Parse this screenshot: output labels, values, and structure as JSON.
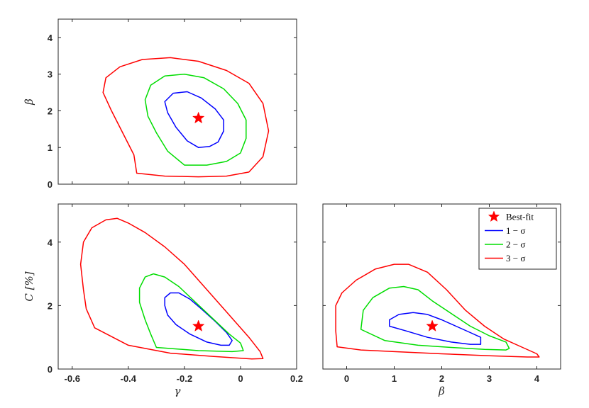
{
  "chart_data": [
    {
      "type": "line",
      "panel": "gamma-beta",
      "xlabel": "",
      "ylabel": "β",
      "xlim": [
        -0.65,
        0.2
      ],
      "ylim": [
        0,
        4.5
      ],
      "xticks": [],
      "yticks": [
        "0",
        "1",
        "2",
        "3",
        "4"
      ],
      "ytick_values": [
        0,
        1,
        2,
        3,
        4
      ],
      "xtick_values": [
        -0.6,
        -0.4,
        -0.2,
        0,
        0.2
      ],
      "series": [
        {
          "name": "1 − σ",
          "color": "#0000ff",
          "points": [
            [
              -0.15,
              1.0
            ],
            [
              -0.11,
              1.03
            ],
            [
              -0.08,
              1.15
            ],
            [
              -0.06,
              1.45
            ],
            [
              -0.06,
              1.75
            ],
            [
              -0.09,
              2.05
            ],
            [
              -0.14,
              2.35
            ],
            [
              -0.19,
              2.52
            ],
            [
              -0.24,
              2.48
            ],
            [
              -0.27,
              2.25
            ],
            [
              -0.26,
              1.95
            ],
            [
              -0.23,
              1.55
            ],
            [
              -0.19,
              1.18
            ],
            [
              -0.15,
              1.0
            ]
          ]
        },
        {
          "name": "2 − σ",
          "color": "#00dd00",
          "points": [
            [
              -0.2,
              0.52
            ],
            [
              -0.12,
              0.52
            ],
            [
              -0.05,
              0.62
            ],
            [
              0.0,
              0.85
            ],
            [
              0.02,
              1.25
            ],
            [
              0.02,
              1.75
            ],
            [
              -0.01,
              2.2
            ],
            [
              -0.06,
              2.6
            ],
            [
              -0.13,
              2.9
            ],
            [
              -0.2,
              3.0
            ],
            [
              -0.27,
              2.95
            ],
            [
              -0.32,
              2.7
            ],
            [
              -0.34,
              2.3
            ],
            [
              -0.33,
              1.85
            ],
            [
              -0.3,
              1.4
            ],
            [
              -0.26,
              0.9
            ],
            [
              -0.2,
              0.52
            ]
          ]
        },
        {
          "name": "3 − σ",
          "color": "#ff0000",
          "points": [
            [
              -0.37,
              0.3
            ],
            [
              -0.27,
              0.22
            ],
            [
              -0.15,
              0.2
            ],
            [
              -0.05,
              0.22
            ],
            [
              0.03,
              0.33
            ],
            [
              0.08,
              0.75
            ],
            [
              0.1,
              1.45
            ],
            [
              0.08,
              2.2
            ],
            [
              0.03,
              2.75
            ],
            [
              -0.05,
              3.1
            ],
            [
              -0.15,
              3.35
            ],
            [
              -0.25,
              3.45
            ],
            [
              -0.35,
              3.4
            ],
            [
              -0.43,
              3.2
            ],
            [
              -0.48,
              2.9
            ],
            [
              -0.49,
              2.5
            ],
            [
              -0.46,
              2.0
            ],
            [
              -0.42,
              1.4
            ],
            [
              -0.38,
              0.8
            ],
            [
              -0.37,
              0.3
            ]
          ]
        }
      ],
      "best_fit": {
        "name": "Best-fit",
        "x": -0.15,
        "y": 1.8,
        "color": "#ff0000"
      }
    },
    {
      "type": "line",
      "panel": "gamma-C",
      "xlabel": "γ",
      "ylabel": "C [%]",
      "xlim": [
        -0.65,
        0.2
      ],
      "ylim": [
        0,
        5.2
      ],
      "xticks": [
        "-0.6",
        "-0.4",
        "-0.2",
        "0",
        "0.2"
      ],
      "xtick_values": [
        -0.6,
        -0.4,
        -0.2,
        0,
        0.2
      ],
      "yticks": [
        "0",
        "2",
        "4"
      ],
      "ytick_values": [
        0,
        2,
        4
      ],
      "series": [
        {
          "name": "1 − σ",
          "color": "#0000ff",
          "points": [
            [
              -0.07,
              0.75
            ],
            [
              -0.04,
              0.75
            ],
            [
              -0.03,
              0.9
            ],
            [
              -0.05,
              1.15
            ],
            [
              -0.09,
              1.5
            ],
            [
              -0.14,
              1.9
            ],
            [
              -0.18,
              2.2
            ],
            [
              -0.22,
              2.4
            ],
            [
              -0.25,
              2.4
            ],
            [
              -0.27,
              2.25
            ],
            [
              -0.27,
              2.0
            ],
            [
              -0.26,
              1.7
            ],
            [
              -0.23,
              1.4
            ],
            [
              -0.18,
              1.1
            ],
            [
              -0.12,
              0.85
            ],
            [
              -0.07,
              0.75
            ]
          ]
        },
        {
          "name": "2 − σ",
          "color": "#00dd00",
          "points": [
            [
              -0.3,
              0.68
            ],
            [
              -0.15,
              0.58
            ],
            [
              -0.03,
              0.55
            ],
            [
              0.01,
              0.58
            ],
            [
              0.0,
              0.82
            ],
            [
              -0.04,
              1.1
            ],
            [
              -0.1,
              1.6
            ],
            [
              -0.16,
              2.1
            ],
            [
              -0.22,
              2.6
            ],
            [
              -0.27,
              2.9
            ],
            [
              -0.31,
              3.0
            ],
            [
              -0.34,
              2.9
            ],
            [
              -0.36,
              2.55
            ],
            [
              -0.36,
              2.1
            ],
            [
              -0.34,
              1.55
            ],
            [
              -0.32,
              1.1
            ],
            [
              -0.3,
              0.68
            ]
          ]
        },
        {
          "name": "3 − σ",
          "color": "#ff0000",
          "points": [
            [
              -0.52,
              1.3
            ],
            [
              -0.4,
              0.75
            ],
            [
              -0.25,
              0.5
            ],
            [
              -0.1,
              0.4
            ],
            [
              0.04,
              0.32
            ],
            [
              0.08,
              0.33
            ],
            [
              0.07,
              0.55
            ],
            [
              0.03,
              1.0
            ],
            [
              -0.02,
              1.5
            ],
            [
              -0.07,
              2.0
            ],
            [
              -0.13,
              2.6
            ],
            [
              -0.2,
              3.3
            ],
            [
              -0.27,
              3.85
            ],
            [
              -0.34,
              4.3
            ],
            [
              -0.4,
              4.6
            ],
            [
              -0.44,
              4.75
            ],
            [
              -0.48,
              4.7
            ],
            [
              -0.53,
              4.45
            ],
            [
              -0.56,
              4.0
            ],
            [
              -0.57,
              3.3
            ],
            [
              -0.56,
              2.5
            ],
            [
              -0.55,
              1.9
            ],
            [
              -0.52,
              1.3
            ]
          ]
        }
      ],
      "best_fit": {
        "name": "Best-fit",
        "x": -0.15,
        "y": 1.35,
        "color": "#ff0000"
      }
    },
    {
      "type": "line",
      "panel": "beta-C",
      "xlabel": "β",
      "ylabel": "",
      "xlim": [
        -0.5,
        4.5
      ],
      "ylim": [
        0,
        5.2
      ],
      "xticks": [
        "0",
        "1",
        "2",
        "3",
        "4"
      ],
      "xtick_values": [
        0,
        1,
        2,
        3,
        4
      ],
      "yticks": [],
      "ytick_values": [
        0,
        2,
        4
      ],
      "series": [
        {
          "name": "1 − σ",
          "color": "#0000ff",
          "points": [
            [
              1.25,
              1.2
            ],
            [
              1.7,
              1.0
            ],
            [
              2.2,
              0.85
            ],
            [
              2.6,
              0.78
            ],
            [
              2.82,
              0.78
            ],
            [
              2.82,
              1.0
            ],
            [
              2.6,
              1.15
            ],
            [
              2.3,
              1.35
            ],
            [
              2.0,
              1.55
            ],
            [
              1.7,
              1.72
            ],
            [
              1.4,
              1.78
            ],
            [
              1.1,
              1.72
            ],
            [
              0.9,
              1.55
            ],
            [
              0.9,
              1.35
            ],
            [
              1.25,
              1.2
            ]
          ]
        },
        {
          "name": "2 − σ",
          "color": "#00dd00",
          "points": [
            [
              0.3,
              1.25
            ],
            [
              0.8,
              0.9
            ],
            [
              1.5,
              0.75
            ],
            [
              2.2,
              0.68
            ],
            [
              2.9,
              0.62
            ],
            [
              3.35,
              0.6
            ],
            [
              3.42,
              0.65
            ],
            [
              3.35,
              0.85
            ],
            [
              3.0,
              1.05
            ],
            [
              2.6,
              1.35
            ],
            [
              2.2,
              1.75
            ],
            [
              1.8,
              2.15
            ],
            [
              1.5,
              2.5
            ],
            [
              1.2,
              2.6
            ],
            [
              0.9,
              2.55
            ],
            [
              0.55,
              2.25
            ],
            [
              0.35,
              1.85
            ],
            [
              0.3,
              1.25
            ]
          ]
        },
        {
          "name": "3 − σ",
          "color": "#ff0000",
          "points": [
            [
              -0.2,
              0.7
            ],
            [
              0.3,
              0.6
            ],
            [
              1.0,
              0.55
            ],
            [
              2.0,
              0.48
            ],
            [
              3.0,
              0.42
            ],
            [
              3.8,
              0.38
            ],
            [
              4.05,
              0.38
            ],
            [
              4.0,
              0.48
            ],
            [
              3.7,
              0.68
            ],
            [
              3.3,
              0.95
            ],
            [
              2.9,
              1.35
            ],
            [
              2.5,
              1.85
            ],
            [
              2.1,
              2.5
            ],
            [
              1.7,
              3.05
            ],
            [
              1.3,
              3.3
            ],
            [
              1.0,
              3.3
            ],
            [
              0.6,
              3.15
            ],
            [
              0.2,
              2.8
            ],
            [
              -0.1,
              2.4
            ],
            [
              -0.23,
              2.0
            ],
            [
              -0.23,
              1.2
            ],
            [
              -0.2,
              0.7
            ]
          ]
        }
      ],
      "best_fit": {
        "name": "Best-fit",
        "x": 1.8,
        "y": 1.35,
        "color": "#ff0000"
      },
      "legend": {
        "placement": "top-right",
        "entries": [
          {
            "label": "Best-fit",
            "color": "#ff0000",
            "marker": "star"
          },
          {
            "label": "1 − σ",
            "color": "#0000ff",
            "marker": "line"
          },
          {
            "label": "2 − σ",
            "color": "#00dd00",
            "marker": "line"
          },
          {
            "label": "3 − σ",
            "color": "#ff0000",
            "marker": "line"
          }
        ]
      }
    }
  ]
}
